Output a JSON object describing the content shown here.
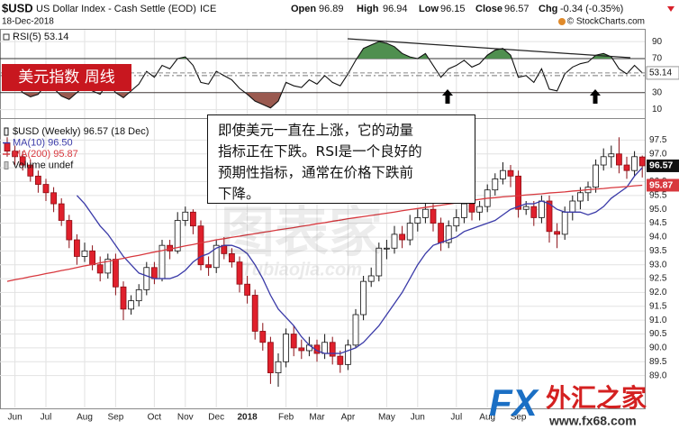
{
  "header": {
    "symbol": "$USD",
    "name": "US Dollar Index - Cash Settle (EOD)",
    "exchange": "ICE",
    "date": "18-Dec-2018",
    "open_label": "Open",
    "open": 96.89,
    "high_label": "High",
    "high": 96.94,
    "low_label": "Low",
    "low": 96.15,
    "close_label": "Close",
    "close": 96.57,
    "chg_label": "Chg",
    "chg": "-0.34 (-0.35%)",
    "credit": "© StockCharts.com"
  },
  "overlay_label": "美元指数 周线",
  "annotation": [
    "即使美元一直在上涨，它的动量",
    "指标正在下跌。RSI是一个良好的",
    "预期性指标，通常在价格下跌前",
    "下降。"
  ],
  "watermark": {
    "main": "图表家",
    "sub": "Tubiaojia.com"
  },
  "logo": {
    "fx": "FX",
    "cn": "外汇之家",
    "url": "www.fx68.com"
  },
  "chart_data": [
    {
      "type": "candlestick",
      "categories": [
        null,
        "Jun",
        null,
        null,
        null,
        "Jul",
        null,
        null,
        null,
        null,
        "Aug",
        null,
        null,
        null,
        "Sep",
        null,
        null,
        null,
        null,
        "Oct",
        null,
        null,
        null,
        "Nov",
        null,
        null,
        null,
        "Dec",
        null,
        null,
        null,
        "2018",
        null,
        null,
        null,
        null,
        "Feb",
        null,
        null,
        null,
        "Mar",
        null,
        null,
        null,
        "Apr",
        null,
        null,
        null,
        null,
        "May",
        null,
        null,
        null,
        "Jun",
        null,
        null,
        null,
        null,
        "Jul",
        null,
        null,
        null,
        "Aug",
        null,
        null,
        null,
        "Sep",
        null,
        null,
        null,
        null,
        null,
        null,
        null,
        null,
        null,
        null,
        null,
        null,
        null,
        null,
        null,
        null
      ],
      "candles": {
        "name": "$USD (Weekly) 96.57 (18 Dec)",
        "up_color": "#ffffff",
        "down_color": "#e0202c",
        "open": [
          97.4,
          97.1,
          96.9,
          96.6,
          96.2,
          95.9,
          95.6,
          95.2,
          94.6,
          93.9,
          93.3,
          93.5,
          93.0,
          92.7,
          93.2,
          92.2,
          91.4,
          91.7,
          92.1,
          92.9,
          92.5,
          93.7,
          93.5,
          94.6,
          94.9,
          94.4,
          93.0,
          92.9,
          93.7,
          93.4,
          93.1,
          92.3,
          91.9,
          90.6,
          90.2,
          89.1,
          89.5,
          90.5,
          90.0,
          89.9,
          90.1,
          89.8,
          90.2,
          89.7,
          89.4,
          90.1,
          91.2,
          92.4,
          92.6,
          93.6,
          93.6,
          94.1,
          93.9,
          94.5,
          94.7,
          95.0,
          94.5,
          93.8,
          94.4,
          94.7,
          95.2,
          94.9,
          95.1,
          95.7,
          96.1,
          96.4,
          96.2,
          95.0,
          95.1,
          94.7,
          95.3,
          94.2,
          94.1,
          94.9,
          95.3,
          95.6,
          95.8,
          96.6,
          96.9,
          97.0,
          96.6,
          96.4,
          96.89
        ],
        "high": [
          97.6,
          97.3,
          97.1,
          96.8,
          96.4,
          96.1,
          95.8,
          95.4,
          94.8,
          94.1,
          93.8,
          93.7,
          93.3,
          93.4,
          93.4,
          92.4,
          91.9,
          92.3,
          93.1,
          93.1,
          93.9,
          93.9,
          94.9,
          95.1,
          95.0,
          94.6,
          93.3,
          93.9,
          94.0,
          93.6,
          93.3,
          92.6,
          92.1,
          90.9,
          90.4,
          89.8,
          90.7,
          90.8,
          90.3,
          90.4,
          90.3,
          90.5,
          90.4,
          89.9,
          90.3,
          91.4,
          92.6,
          92.9,
          93.8,
          93.9,
          94.4,
          94.4,
          94.8,
          95.0,
          95.3,
          95.2,
          94.7,
          94.6,
          95.0,
          95.4,
          95.4,
          95.3,
          95.9,
          96.3,
          96.7,
          96.6,
          96.4,
          95.3,
          95.3,
          95.5,
          95.5,
          94.5,
          95.1,
          95.5,
          95.8,
          96.0,
          96.8,
          97.2,
          97.3,
          97.6,
          96.9,
          97.1,
          96.94
        ],
        "low": [
          96.9,
          96.6,
          96.4,
          96.0,
          95.6,
          95.3,
          94.9,
          94.4,
          93.6,
          93.0,
          93.1,
          92.8,
          92.4,
          92.5,
          91.9,
          91.0,
          91.2,
          91.5,
          91.9,
          92.3,
          92.4,
          93.2,
          93.4,
          94.4,
          94.1,
          92.8,
          92.6,
          92.7,
          93.2,
          92.9,
          92.0,
          91.6,
          90.3,
          89.9,
          88.7,
          88.6,
          89.3,
          89.7,
          89.6,
          89.7,
          89.5,
          89.6,
          89.4,
          89.1,
          89.2,
          90.0,
          91.0,
          92.2,
          92.4,
          93.2,
          93.4,
          93.6,
          93.7,
          94.2,
          94.5,
          94.2,
          93.5,
          93.6,
          94.2,
          94.5,
          94.6,
          94.6,
          94.9,
          95.5,
          95.9,
          95.8,
          94.7,
          94.8,
          94.4,
          94.5,
          93.8,
          93.6,
          93.9,
          94.6,
          95.0,
          95.3,
          95.6,
          96.4,
          96.5,
          96.3,
          96.1,
          96.2,
          96.15
        ],
        "close": [
          97.1,
          96.9,
          96.6,
          96.2,
          95.9,
          95.6,
          95.2,
          94.6,
          93.9,
          93.3,
          93.5,
          93.0,
          92.7,
          93.2,
          92.2,
          91.4,
          91.7,
          92.1,
          92.9,
          92.5,
          93.7,
          93.5,
          94.6,
          94.9,
          94.4,
          93.0,
          92.9,
          93.7,
          93.4,
          93.1,
          92.3,
          91.9,
          90.6,
          90.2,
          89.1,
          89.5,
          90.5,
          90.0,
          89.9,
          90.1,
          89.8,
          90.2,
          89.7,
          89.4,
          90.1,
          91.2,
          92.4,
          92.6,
          93.6,
          93.6,
          94.1,
          93.9,
          94.5,
          94.7,
          95.0,
          94.5,
          93.8,
          94.4,
          94.7,
          95.2,
          94.9,
          95.1,
          95.7,
          96.1,
          96.4,
          96.2,
          95.0,
          95.1,
          94.7,
          95.3,
          94.2,
          94.1,
          94.9,
          95.3,
          95.6,
          95.8,
          96.6,
          96.9,
          97.0,
          96.6,
          96.4,
          96.9,
          96.57
        ]
      },
      "series": [
        {
          "name": "MA(10) 96.50",
          "color": "#3a3aa8",
          "values": [
            null,
            null,
            null,
            null,
            null,
            null,
            null,
            null,
            null,
            95.5,
            95.2,
            94.8,
            94.4,
            94.1,
            93.7,
            93.3,
            93.0,
            92.7,
            92.6,
            92.5,
            92.5,
            92.5,
            92.6,
            92.8,
            93.1,
            93.3,
            93.4,
            93.6,
            93.7,
            93.7,
            93.6,
            93.4,
            93.0,
            92.5,
            91.9,
            91.4,
            91.1,
            90.8,
            90.4,
            90.1,
            89.9,
            89.8,
            89.8,
            89.8,
            89.9,
            90.0,
            90.2,
            90.5,
            90.8,
            91.2,
            91.6,
            92.0,
            92.5,
            93.0,
            93.4,
            93.7,
            93.8,
            93.9,
            94.0,
            94.2,
            94.3,
            94.4,
            94.5,
            94.6,
            94.8,
            95.0,
            95.1,
            95.2,
            95.2,
            95.3,
            95.2,
            95.0,
            94.9,
            94.9,
            94.9,
            94.8,
            94.9,
            95.1,
            95.4,
            95.6,
            95.8,
            96.2,
            96.5
          ]
        },
        {
          "name": "MA(200) 95.87",
          "color": "#d8383e",
          "values": [
            92.4,
            92.46,
            92.51,
            92.57,
            92.62,
            92.68,
            92.73,
            92.79,
            92.84,
            92.9,
            92.96,
            93.01,
            93.07,
            93.12,
            93.18,
            93.23,
            93.29,
            93.34,
            93.4,
            93.46,
            93.51,
            93.57,
            93.62,
            93.68,
            93.73,
            93.79,
            93.84,
            93.9,
            93.94,
            93.99,
            94.03,
            94.08,
            94.12,
            94.17,
            94.21,
            94.26,
            94.3,
            94.34,
            94.39,
            94.43,
            94.48,
            94.52,
            94.57,
            94.61,
            94.66,
            94.7,
            94.74,
            94.78,
            94.82,
            94.86,
            94.9,
            94.95,
            94.99,
            95.03,
            95.07,
            95.11,
            95.15,
            95.19,
            95.23,
            95.28,
            95.32,
            95.36,
            95.4,
            95.42,
            95.45,
            95.47,
            95.49,
            95.52,
            95.54,
            95.56,
            95.59,
            95.61,
            95.63,
            95.66,
            95.68,
            95.71,
            95.73,
            95.75,
            95.78,
            95.8,
            95.82,
            95.85,
            95.87
          ]
        }
      ],
      "volume_label": "Volume undef",
      "ylim": [
        87.85,
        98.0
      ],
      "yticks": [
        {
          "value": 89,
          "label": "89.0"
        },
        89.5,
        {
          "value": 90,
          "label": "90.0"
        },
        90.5,
        {
          "value": 91,
          "label": "91.0"
        },
        91.5,
        {
          "value": 92,
          "label": "92.0"
        },
        92.5,
        {
          "value": 93,
          "label": "93.0"
        },
        93.5,
        {
          "value": 94,
          "label": "94.0"
        },
        94.5,
        {
          "value": 95,
          "label": "95.0"
        },
        95.5,
        {
          "value": 96,
          "label": "96.0"
        },
        96.5,
        {
          "value": 97,
          "label": "97.0"
        },
        97.5
      ],
      "grid": true
    },
    {
      "type": "line",
      "name": "RSI(5) 53.14",
      "color": "#111111",
      "overbought_color": "#4f8f4f",
      "oversold_color": "#9a5a50",
      "values": [
        48,
        42,
        30,
        25,
        28,
        40,
        35,
        26,
        22,
        30,
        38,
        32,
        28,
        42,
        30,
        24,
        32,
        40,
        55,
        48,
        62,
        58,
        70,
        72,
        62,
        42,
        40,
        55,
        50,
        45,
        35,
        28,
        20,
        16,
        12,
        20,
        42,
        38,
        36,
        45,
        40,
        50,
        42,
        38,
        52,
        68,
        82,
        86,
        90,
        88,
        84,
        76,
        72,
        70,
        76,
        62,
        48,
        58,
        62,
        68,
        60,
        64,
        74,
        80,
        82,
        74,
        48,
        50,
        42,
        58,
        34,
        32,
        52,
        60,
        64,
        66,
        74,
        76,
        72,
        58,
        52,
        62,
        53.14
      ],
      "ylim": [
        0,
        105
      ],
      "yticks": [
        10,
        30,
        50,
        70,
        90
      ],
      "grid": true
    }
  ]
}
